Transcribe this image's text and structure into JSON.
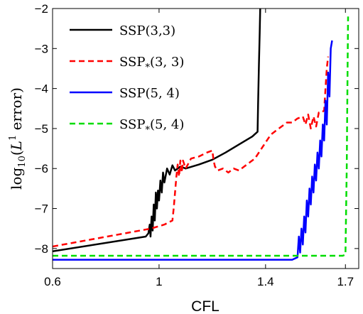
{
  "chart_data": {
    "type": "line",
    "xlabel": "CFL",
    "ylabel": {
      "prefix": "log",
      "sub": "10",
      "open": "(",
      "var": "L",
      "sup": "1",
      "word": " error)"
    },
    "xlim": [
      0.6,
      1.75
    ],
    "ylim": [
      -8.5,
      -2
    ],
    "xticks": [
      0.6,
      1,
      1.4,
      1.7
    ],
    "xtick_labels": [
      "0.6",
      "1",
      "1.4",
      "1.7"
    ],
    "yticks": [
      -8,
      -7,
      -6,
      -5,
      -4,
      -3,
      -2
    ],
    "ytick_labels": [
      "−8",
      "−7",
      "−6",
      "−5",
      "−4",
      "−3",
      "−2"
    ],
    "legend_position": "top-left",
    "series": [
      {
        "name": "SSP(3,3)",
        "name_main": "SSP",
        "name_sub": "",
        "name_args": "(3,3)",
        "color": "#000000",
        "dash": "solid",
        "points": [
          [
            0.6,
            -8.07
          ],
          [
            0.95,
            -7.7
          ],
          [
            0.96,
            -7.62
          ],
          [
            0.965,
            -7.4
          ],
          [
            0.968,
            -7.7
          ],
          [
            0.972,
            -7.2
          ],
          [
            0.976,
            -7.55
          ],
          [
            0.98,
            -6.9
          ],
          [
            0.984,
            -7.3
          ],
          [
            0.988,
            -6.6
          ],
          [
            0.992,
            -7.0
          ],
          [
            0.996,
            -6.55
          ],
          [
            1.0,
            -6.8
          ],
          [
            1.005,
            -6.3
          ],
          [
            1.01,
            -6.6
          ],
          [
            1.015,
            -6.1
          ],
          [
            1.02,
            -6.35
          ],
          [
            1.03,
            -6.0
          ],
          [
            1.04,
            -6.15
          ],
          [
            1.05,
            -5.92
          ],
          [
            1.06,
            -6.05
          ],
          [
            1.08,
            -5.95
          ],
          [
            1.1,
            -6.0
          ],
          [
            1.15,
            -5.9
          ],
          [
            1.2,
            -5.78
          ],
          [
            1.25,
            -5.6
          ],
          [
            1.3,
            -5.4
          ],
          [
            1.35,
            -5.2
          ],
          [
            1.37,
            -5.08
          ],
          [
            1.372,
            -4.4
          ],
          [
            1.375,
            -3.4
          ],
          [
            1.378,
            -2.6
          ],
          [
            1.38,
            -2.0
          ]
        ]
      },
      {
        "name": "SSP*(3,3)",
        "name_main": "SSP",
        "name_sub": "*",
        "name_args": "(3, 3)",
        "color": "#ff0000",
        "dash": "dashed",
        "points": [
          [
            0.6,
            -7.95
          ],
          [
            0.97,
            -7.5
          ],
          [
            1.02,
            -7.4
          ],
          [
            1.05,
            -7.3
          ],
          [
            1.055,
            -7.0
          ],
          [
            1.06,
            -6.6
          ],
          [
            1.065,
            -6.2
          ],
          [
            1.07,
            -5.9
          ],
          [
            1.075,
            -6.2
          ],
          [
            1.08,
            -5.8
          ],
          [
            1.085,
            -6.1
          ],
          [
            1.09,
            -5.8
          ],
          [
            1.1,
            -6.0
          ],
          [
            1.12,
            -5.75
          ],
          [
            1.15,
            -5.7
          ],
          [
            1.18,
            -5.6
          ],
          [
            1.2,
            -5.55
          ],
          [
            1.205,
            -5.8
          ],
          [
            1.21,
            -5.95
          ],
          [
            1.22,
            -6.05
          ],
          [
            1.24,
            -6.0
          ],
          [
            1.26,
            -6.1
          ],
          [
            1.28,
            -6.0
          ],
          [
            1.3,
            -6.05
          ],
          [
            1.32,
            -5.95
          ],
          [
            1.34,
            -5.85
          ],
          [
            1.36,
            -5.75
          ],
          [
            1.38,
            -5.55
          ],
          [
            1.4,
            -5.35
          ],
          [
            1.42,
            -5.15
          ],
          [
            1.44,
            -5.05
          ],
          [
            1.46,
            -4.95
          ],
          [
            1.48,
            -4.85
          ],
          [
            1.5,
            -4.85
          ],
          [
            1.52,
            -4.75
          ],
          [
            1.54,
            -4.7
          ],
          [
            1.55,
            -4.9
          ],
          [
            1.56,
            -4.65
          ],
          [
            1.57,
            -5.0
          ],
          [
            1.58,
            -4.7
          ],
          [
            1.59,
            -4.95
          ],
          [
            1.6,
            -4.6
          ],
          [
            1.61,
            -4.6
          ],
          [
            1.62,
            -4.55
          ],
          [
            1.625,
            -4.0
          ],
          [
            1.63,
            -3.5
          ],
          [
            1.635,
            -3.2
          ]
        ]
      },
      {
        "name": "SSP(5,4)",
        "name_main": "SSP",
        "name_sub": "",
        "name_args": "(5, 4)",
        "color": "#0000ff",
        "dash": "solid",
        "points": [
          [
            0.6,
            -8.28
          ],
          [
            1.5,
            -8.28
          ],
          [
            1.52,
            -8.22
          ],
          [
            1.525,
            -7.7
          ],
          [
            1.53,
            -8.1
          ],
          [
            1.535,
            -7.5
          ],
          [
            1.54,
            -7.9
          ],
          [
            1.545,
            -7.2
          ],
          [
            1.55,
            -7.6
          ],
          [
            1.555,
            -6.8
          ],
          [
            1.56,
            -7.2
          ],
          [
            1.565,
            -6.5
          ],
          [
            1.57,
            -6.9
          ],
          [
            1.575,
            -6.2
          ],
          [
            1.58,
            -6.6
          ],
          [
            1.585,
            -5.9
          ],
          [
            1.59,
            -6.3
          ],
          [
            1.595,
            -5.6
          ],
          [
            1.6,
            -6.0
          ],
          [
            1.605,
            -5.3
          ],
          [
            1.61,
            -5.7
          ],
          [
            1.615,
            -4.9
          ],
          [
            1.62,
            -5.3
          ],
          [
            1.625,
            -4.3
          ],
          [
            1.63,
            -4.9
          ],
          [
            1.635,
            -3.6
          ],
          [
            1.64,
            -4.2
          ],
          [
            1.645,
            -3.0
          ],
          [
            1.65,
            -2.8
          ]
        ]
      },
      {
        "name": "SSP*(5,4)",
        "name_main": "SSP",
        "name_sub": "*",
        "name_args": "(5, 4)",
        "color": "#00dd00",
        "dash": "dashed",
        "points": [
          [
            0.6,
            -8.18
          ],
          [
            1.69,
            -8.18
          ],
          [
            1.7,
            -8.15
          ],
          [
            1.705,
            -6.0
          ],
          [
            1.708,
            -3.5
          ],
          [
            1.71,
            -2.2
          ]
        ]
      }
    ]
  }
}
